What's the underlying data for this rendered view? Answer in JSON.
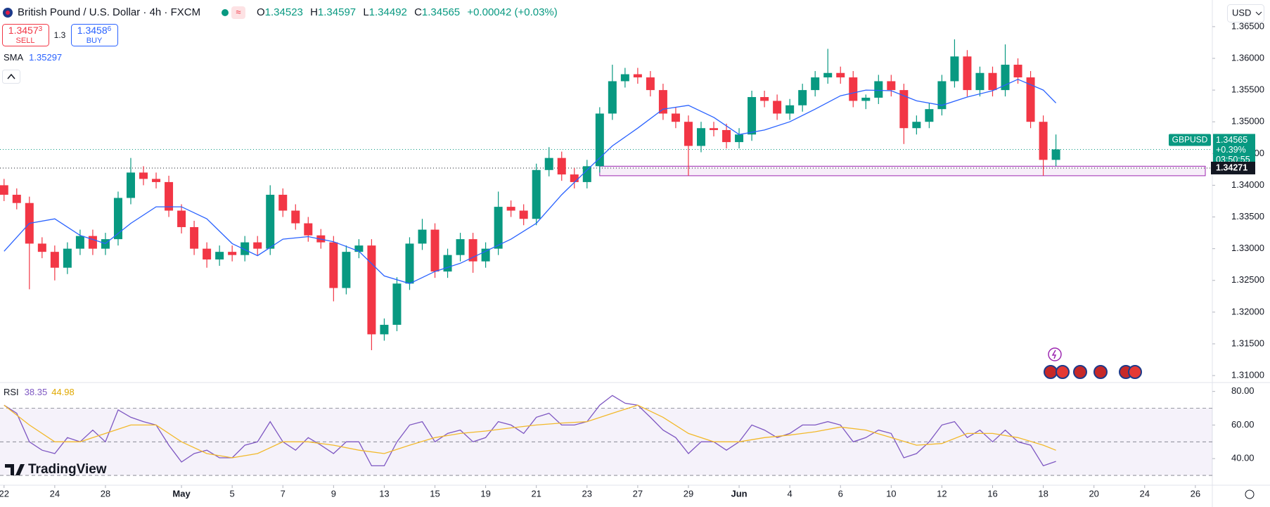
{
  "header": {
    "symbol_title": "British Pound / U.S. Dollar · 4h · FXCM",
    "ohlc": [
      {
        "label": "O",
        "value": "1.34523"
      },
      {
        "label": "H",
        "value": "1.34597"
      },
      {
        "label": "L",
        "value": "1.34492"
      },
      {
        "label": "C",
        "value": "1.34565"
      }
    ],
    "change": "+0.00042 (+0.03%)",
    "sell": {
      "price": "1.3457",
      "pip": "3",
      "label": "SELL"
    },
    "spread": "1.3",
    "buy": {
      "price": "1.3458",
      "pip": "6",
      "label": "BUY"
    },
    "currency": "USD",
    "logo": "TradingView"
  },
  "chart_data": [
    {
      "type": "candlestick",
      "symbol": "GBPUSD",
      "up_color": "#089981",
      "down_color": "#f23645",
      "grid": false,
      "xlim": [
        -0.16,
        47.67
      ],
      "xticks": [
        {
          "value": 0,
          "label": "22"
        },
        {
          "value": 2,
          "label": "24"
        },
        {
          "value": 4,
          "label": "28"
        },
        {
          "value": 7,
          "label": "May"
        },
        {
          "value": 9,
          "label": "5"
        },
        {
          "value": 11,
          "label": "7"
        },
        {
          "value": 13,
          "label": "9"
        },
        {
          "value": 15,
          "label": "13"
        },
        {
          "value": 17,
          "label": "15"
        },
        {
          "value": 19,
          "label": "19"
        },
        {
          "value": 21,
          "label": "21"
        },
        {
          "value": 23,
          "label": "23"
        },
        {
          "value": 25,
          "label": "27"
        },
        {
          "value": 27,
          "label": "29"
        },
        {
          "value": 29,
          "label": "Jun"
        },
        {
          "value": 31,
          "label": "4"
        },
        {
          "value": 33,
          "label": "6"
        },
        {
          "value": 35,
          "label": "10"
        },
        {
          "value": 37,
          "label": "12"
        },
        {
          "value": 39,
          "label": "16"
        },
        {
          "value": 41,
          "label": "18"
        },
        {
          "value": 43,
          "label": "20"
        },
        {
          "value": 45,
          "label": "24"
        },
        {
          "value": 47,
          "label": "26"
        }
      ],
      "ylim": [
        1.3089,
        1.3692
      ],
      "yticks": [
        {
          "value": 1.31,
          "label": "1.31000"
        },
        {
          "value": 1.315,
          "label": "1.31500"
        },
        {
          "value": 1.32,
          "label": "1.32000"
        },
        {
          "value": 1.325,
          "label": "1.32500"
        },
        {
          "value": 1.33,
          "label": "1.33000"
        },
        {
          "value": 1.335,
          "label": "1.33500"
        },
        {
          "value": 1.34,
          "label": "1.34000"
        },
        {
          "value": 1.345,
          "label": "1.34500"
        },
        {
          "value": 1.35,
          "label": "1.35000"
        },
        {
          "value": 1.355,
          "label": "1.35500"
        },
        {
          "value": 1.36,
          "label": "1.36000"
        },
        {
          "value": 1.365,
          "label": "1.36500"
        }
      ],
      "x": [
        0,
        0.5,
        1,
        1.5,
        2,
        2.5,
        3,
        3.5,
        4,
        4.5,
        5,
        5.5,
        6,
        6.5,
        7,
        7.5,
        8,
        8.5,
        9,
        9.5,
        10,
        10.5,
        11,
        11.5,
        12,
        12.5,
        13,
        13.5,
        14,
        14.5,
        15,
        15.5,
        16,
        16.5,
        17,
        17.5,
        18,
        18.5,
        19,
        19.5,
        20,
        20.5,
        21,
        21.5,
        22,
        22.5,
        23,
        23.5,
        24,
        24.5,
        25,
        25.5,
        26,
        26.5,
        27,
        27.5,
        28,
        28.5,
        29,
        29.5,
        30,
        30.5,
        31,
        31.5,
        32,
        32.5,
        33,
        33.5,
        34,
        34.5,
        35,
        35.5,
        36,
        36.5,
        37,
        37.5,
        38,
        38.5,
        39,
        39.5,
        40,
        40.5,
        41,
        41.5
      ],
      "open": [
        1.34,
        1.3385,
        1.3372,
        1.3308,
        1.3295,
        1.327,
        1.33,
        1.332,
        1.33,
        1.3315,
        1.338,
        1.342,
        1.341,
        1.3405,
        1.336,
        1.3334,
        1.33,
        1.3283,
        1.3295,
        1.329,
        1.331,
        1.33,
        1.3385,
        1.336,
        1.334,
        1.3321,
        1.331,
        1.3238,
        1.3295,
        1.3305,
        1.3165,
        1.318,
        1.3245,
        1.3308,
        1.333,
        1.3264,
        1.329,
        1.3315,
        1.328,
        1.33,
        1.3366,
        1.336,
        1.3347,
        1.3424,
        1.3443,
        1.3417,
        1.3405,
        1.343,
        1.3513,
        1.3564,
        1.3575,
        1.357,
        1.355,
        1.3513,
        1.35,
        1.3462,
        1.349,
        1.3487,
        1.3468,
        1.348,
        1.3539,
        1.3533,
        1.3513,
        1.3526,
        1.355,
        1.357,
        1.3577,
        1.357,
        1.3533,
        1.3538,
        1.3564,
        1.355,
        1.349,
        1.35,
        1.352,
        1.3564,
        1.3603,
        1.355,
        1.3577,
        1.355,
        1.359,
        1.357,
        1.35,
        1.344
      ],
      "high": [
        1.341,
        1.3395,
        1.3382,
        1.3318,
        1.3305,
        1.331,
        1.333,
        1.333,
        1.3325,
        1.339,
        1.3443,
        1.343,
        1.342,
        1.3415,
        1.337,
        1.3344,
        1.331,
        1.3305,
        1.3305,
        1.332,
        1.332,
        1.34,
        1.3395,
        1.337,
        1.335,
        1.3331,
        1.332,
        1.3305,
        1.3315,
        1.3315,
        1.319,
        1.3255,
        1.3318,
        1.3347,
        1.334,
        1.33,
        1.3325,
        1.3325,
        1.331,
        1.339,
        1.3376,
        1.337,
        1.3434,
        1.346,
        1.3453,
        1.3427,
        1.344,
        1.3523,
        1.359,
        1.3585,
        1.3585,
        1.358,
        1.356,
        1.3523,
        1.351,
        1.35,
        1.35,
        1.3497,
        1.349,
        1.3549,
        1.3549,
        1.3543,
        1.3536,
        1.356,
        1.358,
        1.3615,
        1.3587,
        1.358,
        1.3543,
        1.3574,
        1.3574,
        1.356,
        1.351,
        1.353,
        1.3574,
        1.363,
        1.3613,
        1.3587,
        1.3587,
        1.3622,
        1.36,
        1.358,
        1.351,
        1.348
      ],
      "low": [
        1.3375,
        1.3362,
        1.3236,
        1.3285,
        1.325,
        1.326,
        1.329,
        1.329,
        1.329,
        1.3305,
        1.337,
        1.34,
        1.3395,
        1.335,
        1.3324,
        1.329,
        1.327,
        1.3273,
        1.328,
        1.328,
        1.329,
        1.329,
        1.335,
        1.333,
        1.3311,
        1.33,
        1.3217,
        1.3228,
        1.3285,
        1.314,
        1.3155,
        1.317,
        1.3235,
        1.3298,
        1.3254,
        1.3254,
        1.328,
        1.3262,
        1.327,
        1.329,
        1.335,
        1.3337,
        1.3337,
        1.3414,
        1.3407,
        1.3395,
        1.3395,
        1.342,
        1.3503,
        1.3554,
        1.356,
        1.354,
        1.3503,
        1.349,
        1.3415,
        1.3452,
        1.3477,
        1.3458,
        1.3458,
        1.347,
        1.3523,
        1.3503,
        1.3503,
        1.3516,
        1.354,
        1.356,
        1.356,
        1.3523,
        1.352,
        1.3528,
        1.354,
        1.3465,
        1.348,
        1.349,
        1.351,
        1.3554,
        1.354,
        1.354,
        1.354,
        1.354,
        1.356,
        1.349,
        1.3415,
        1.343
      ],
      "close": [
        1.3385,
        1.3372,
        1.3308,
        1.3295,
        1.327,
        1.33,
        1.332,
        1.33,
        1.3315,
        1.338,
        1.342,
        1.341,
        1.3405,
        1.336,
        1.3334,
        1.33,
        1.3283,
        1.3295,
        1.329,
        1.331,
        1.33,
        1.3385,
        1.336,
        1.334,
        1.3321,
        1.331,
        1.3238,
        1.3295,
        1.3305,
        1.3165,
        1.318,
        1.3245,
        1.3308,
        1.333,
        1.3264,
        1.329,
        1.3315,
        1.328,
        1.33,
        1.3366,
        1.336,
        1.3347,
        1.3424,
        1.3443,
        1.3417,
        1.3405,
        1.343,
        1.3513,
        1.3564,
        1.3575,
        1.357,
        1.355,
        1.3513,
        1.35,
        1.3462,
        1.349,
        1.3487,
        1.3468,
        1.348,
        1.3539,
        1.3533,
        1.3513,
        1.3526,
        1.355,
        1.357,
        1.3577,
        1.357,
        1.3533,
        1.3538,
        1.3564,
        1.355,
        1.349,
        1.35,
        1.352,
        1.3564,
        1.3603,
        1.355,
        1.3577,
        1.355,
        1.359,
        1.357,
        1.35,
        1.344,
        1.34565
      ],
      "series": [
        {
          "name": "SMA",
          "color": "#2962ff",
          "x": [
            0,
            1,
            2,
            3,
            4,
            5,
            6,
            7,
            8,
            9,
            10,
            11,
            12,
            13,
            14,
            15,
            16,
            17,
            18,
            19,
            20,
            21,
            22,
            23,
            24,
            25,
            26,
            27,
            28,
            29,
            30,
            31,
            32,
            33,
            34,
            35,
            36,
            37,
            38,
            39,
            40,
            41,
            41.5
          ],
          "values": [
            1.3296,
            1.334,
            1.3347,
            1.3321,
            1.3308,
            1.334,
            1.3366,
            1.3366,
            1.3347,
            1.3308,
            1.3289,
            1.3315,
            1.3319,
            1.3311,
            1.3296,
            1.3257,
            1.3245,
            1.3264,
            1.3277,
            1.3296,
            1.3315,
            1.334,
            1.3385,
            1.3424,
            1.3462,
            1.349,
            1.352,
            1.3526,
            1.3507,
            1.348,
            1.3487,
            1.35,
            1.352,
            1.3541,
            1.355,
            1.3549,
            1.3533,
            1.3526,
            1.3539,
            1.3549,
            1.3567,
            1.355,
            1.35297
          ]
        }
      ],
      "price_change": "+0.39%",
      "countdown": "03:50:55",
      "level": 1.34271,
      "zone": {
        "x_start": 23.5,
        "low": 1.3415,
        "high": 1.343,
        "color": "#9c27b0"
      }
    },
    {
      "type": "line",
      "title": "RSI",
      "xlim": [
        -0.16,
        47.67
      ],
      "ylim": [
        25,
        85.3
      ],
      "yticks": [
        {
          "value": 40,
          "label": "40.00"
        },
        {
          "value": 60,
          "label": "60.00"
        },
        {
          "value": 80,
          "label": "80.00"
        }
      ],
      "levels": [
        70,
        50,
        30
      ],
      "band_color": "#7e57c2",
      "series": [
        {
          "color": "#7e57c2",
          "x": [
            0,
            0.5,
            1,
            1.5,
            2,
            2.5,
            3,
            3.5,
            4,
            4.5,
            5,
            5.5,
            6,
            6.5,
            7,
            7.5,
            8,
            8.5,
            9,
            9.5,
            10,
            10.5,
            11,
            11.5,
            12,
            12.5,
            13,
            13.5,
            14,
            14.5,
            15,
            15.5,
            16,
            16.5,
            17,
            17.5,
            18,
            18.5,
            19,
            19.5,
            20,
            20.5,
            21,
            21.5,
            22,
            22.5,
            23,
            23.5,
            24,
            24.5,
            25,
            25.5,
            26,
            26.5,
            27,
            27.5,
            28,
            28.5,
            29,
            29.5,
            30,
            30.5,
            31,
            31.5,
            32,
            32.5,
            33,
            33.5,
            34,
            34.5,
            35,
            35.5,
            36,
            36.5,
            37,
            37.5,
            38,
            38.5,
            39,
            39.5,
            40,
            40.5,
            41,
            41.5
          ],
          "values": [
            71.8,
            67,
            50,
            45,
            43,
            52.5,
            50,
            57,
            50,
            69,
            64.6,
            62,
            60,
            48,
            38,
            43,
            45,
            40.5,
            40.5,
            48,
            50,
            62,
            50,
            45,
            52.5,
            48,
            43,
            50,
            50,
            35.7,
            35.7,
            50,
            60,
            62,
            50,
            55,
            57,
            50,
            52.5,
            62,
            60,
            55,
            64.6,
            67,
            60,
            60,
            62,
            71.8,
            77.6,
            73,
            71.8,
            64.6,
            57,
            52.5,
            43,
            50,
            50,
            45,
            50,
            60,
            57,
            52.5,
            55,
            60,
            60,
            62,
            60,
            50,
            52.5,
            57,
            55,
            40.5,
            43,
            50,
            60,
            62,
            52.5,
            57,
            50,
            57,
            50,
            48,
            35.7,
            38.35
          ]
        },
        {
          "color": "#f2b92b",
          "x": [
            0,
            1,
            2,
            3,
            4,
            5,
            6,
            7,
            8,
            9,
            10,
            11,
            12,
            13,
            14,
            15,
            16,
            17,
            18,
            19,
            20,
            21,
            22,
            23,
            24,
            25,
            26,
            27,
            28,
            29,
            30,
            31,
            32,
            33,
            34,
            35,
            36,
            37,
            38,
            39,
            40,
            41,
            41.5
          ],
          "values": [
            71.8,
            60,
            50,
            50,
            55,
            60,
            60,
            50,
            43,
            40.5,
            43,
            50,
            50,
            48,
            45,
            43,
            48,
            52.5,
            55,
            56.4,
            58.3,
            60,
            61.2,
            62,
            67,
            71.8,
            64.6,
            55,
            50,
            50,
            52.5,
            54,
            56,
            58.8,
            57,
            52.5,
            48,
            49,
            55,
            55,
            52.5,
            48,
            44.98
          ]
        }
      ]
    }
  ]
}
